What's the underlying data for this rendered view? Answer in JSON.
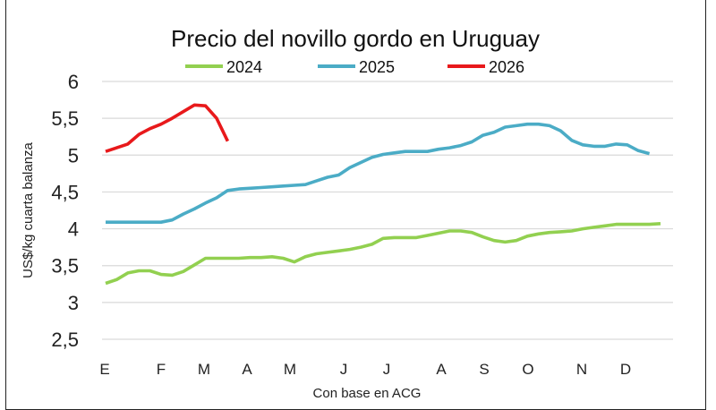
{
  "chart_data": {
    "type": "line",
    "title": "Precio del novillo gordo en Uruguay",
    "xlabel": "Con base en ACG",
    "ylabel": "US$/kg cuarta balanza",
    "ylim": [
      2.5,
      6
    ],
    "yticks": [
      "6",
      "5,5",
      "5",
      "4,5",
      "4",
      "3,5",
      "3",
      "2,5"
    ],
    "ytick_values": [
      6,
      5.5,
      5,
      4.5,
      4,
      3.5,
      3,
      2.5
    ],
    "xticks": [
      "E",
      "F",
      "M",
      "A",
      "M",
      "J",
      "J",
      "A",
      "S",
      "O",
      "N",
      "D"
    ],
    "grid": true,
    "legend_position": "top",
    "series": [
      {
        "name": "2024",
        "color": "#92d050",
        "values": [
          3.26,
          3.31,
          3.4,
          3.43,
          3.43,
          3.38,
          3.37,
          3.42,
          3.51,
          3.6,
          3.6,
          3.6,
          3.6,
          3.61,
          3.61,
          3.62,
          3.6,
          3.55,
          3.62,
          3.66,
          3.68,
          3.7,
          3.72,
          3.75,
          3.79,
          3.87,
          3.88,
          3.88,
          3.88,
          3.91,
          3.94,
          3.97,
          3.97,
          3.95,
          3.89,
          3.84,
          3.82,
          3.84,
          3.9,
          3.93,
          3.95,
          3.96,
          3.97,
          4.0,
          4.02,
          4.04,
          4.06,
          4.06,
          4.06,
          4.06,
          4.07
        ]
      },
      {
        "name": "2025",
        "color": "#4bacc6",
        "values": [
          4.09,
          4.09,
          4.09,
          4.09,
          4.09,
          4.09,
          4.12,
          4.2,
          4.27,
          4.35,
          4.42,
          4.52,
          4.54,
          4.55,
          4.56,
          4.57,
          4.58,
          4.59,
          4.6,
          4.65,
          4.7,
          4.73,
          4.83,
          4.9,
          4.97,
          5.01,
          5.03,
          5.05,
          5.05,
          5.05,
          5.08,
          5.1,
          5.13,
          5.18,
          5.27,
          5.31,
          5.38,
          5.4,
          5.42,
          5.42,
          5.4,
          5.33,
          5.2,
          5.14,
          5.12,
          5.12,
          5.15,
          5.14,
          5.06,
          5.02
        ]
      },
      {
        "name": "2026",
        "color": "#e8191b",
        "values": [
          5.05,
          5.1,
          5.15,
          5.28,
          5.36,
          5.42,
          5.5,
          5.59,
          5.68,
          5.67,
          5.5,
          5.19
        ]
      }
    ]
  }
}
